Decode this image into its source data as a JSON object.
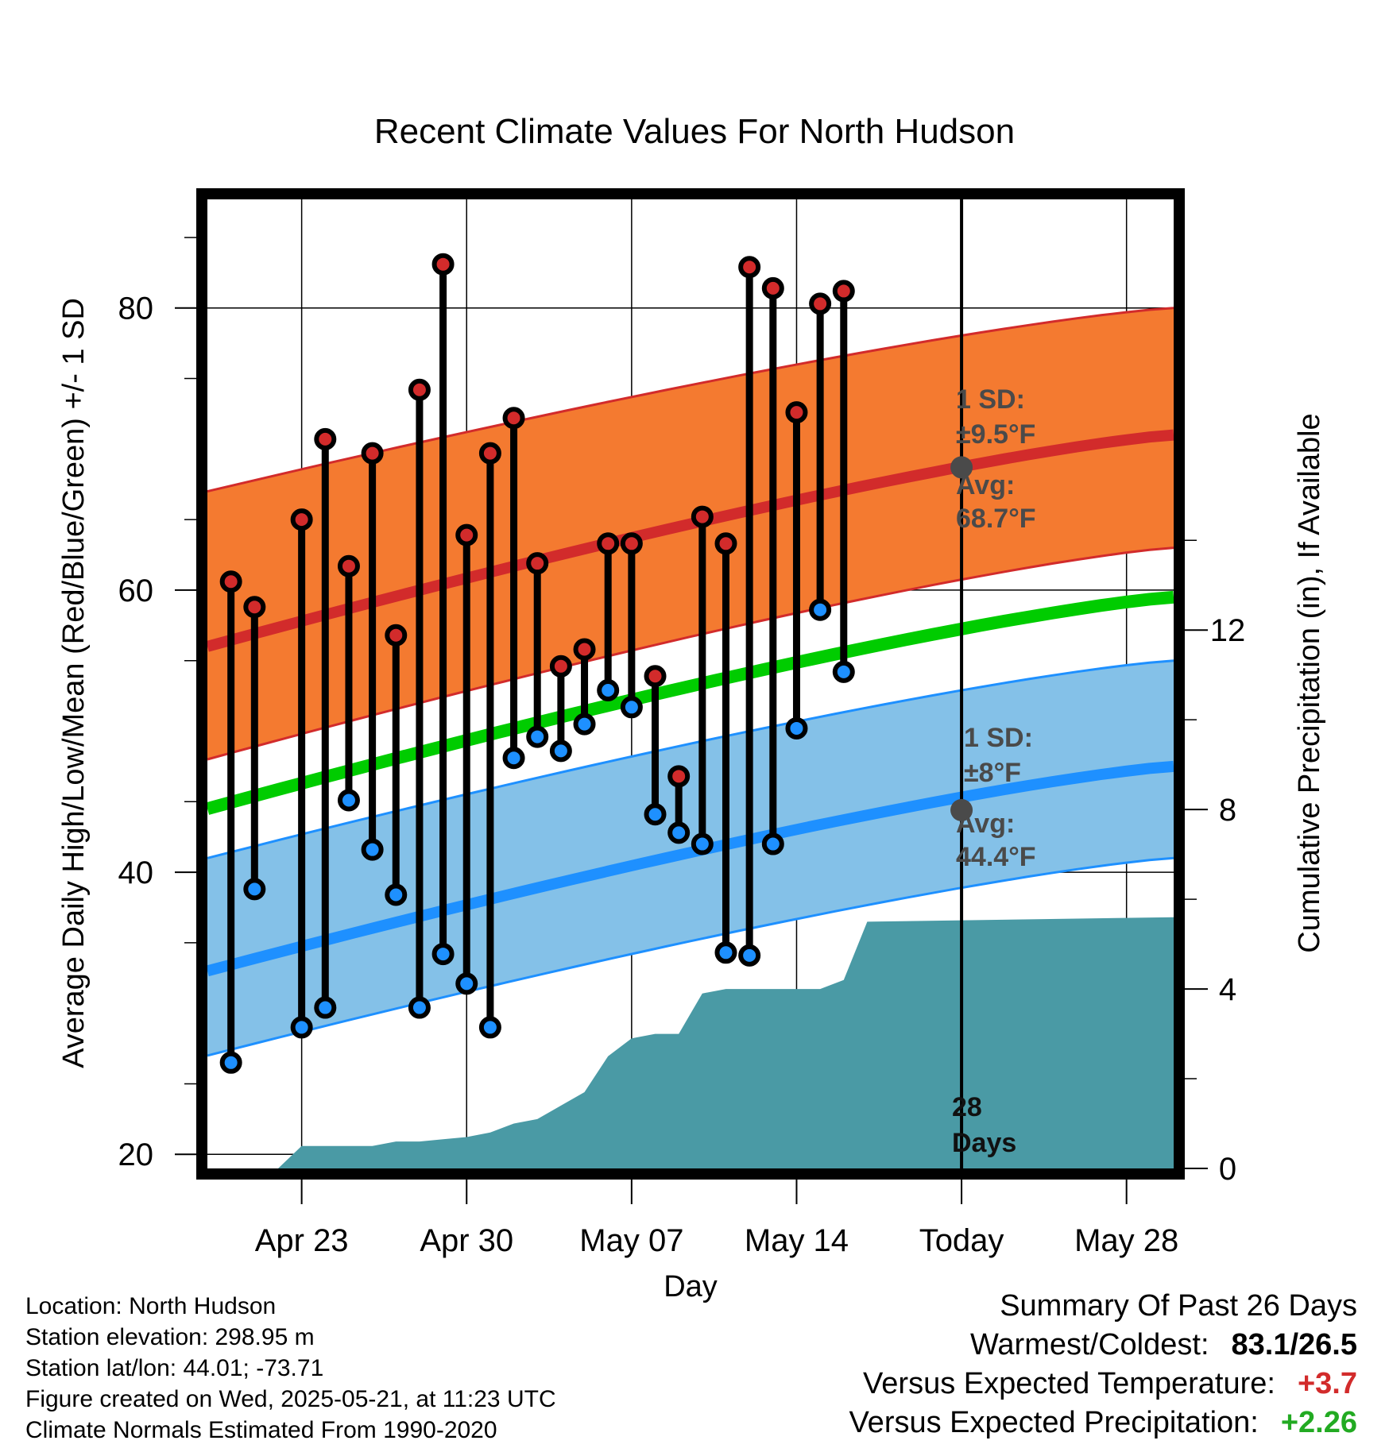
{
  "chart_data": {
    "type": "line",
    "title": "Recent Climate Values For North Hudson",
    "xlabel": "Day",
    "ylabel": "Average Daily High/Low/Mean (Red/Blue/Green) +/- 1 SD",
    "y2label": "Cumulative Precipitation (in), If Available",
    "ylim": [
      19,
      87.7
    ],
    "y2lim": [
      0,
      21.6
    ],
    "yticks": [
      20,
      40,
      60,
      80
    ],
    "y2ticks": [
      0,
      4,
      8,
      12
    ],
    "xrange_day_of_year": [
      109,
      150
    ],
    "xticks": [
      {
        "label": "Apr 23",
        "day": 113
      },
      {
        "label": "Apr 30",
        "day": 120
      },
      {
        "label": "May 07",
        "day": 127
      },
      {
        "label": "May 14",
        "day": 134
      },
      {
        "label": "Today",
        "day": 141
      },
      {
        "label": "May 28",
        "day": 148
      }
    ],
    "today_day": 141,
    "days_label": [
      "28",
      "Days"
    ],
    "normals": {
      "day": [
        109,
        150
      ],
      "high_mean": [
        56.0,
        71.0
      ],
      "high_upper": [
        67.0,
        80.0
      ],
      "high_lower": [
        48.0,
        63.0
      ],
      "mean": [
        44.5,
        59.5
      ],
      "low_mean": [
        33.0,
        47.5
      ],
      "low_upper": [
        41.0,
        55.0
      ],
      "low_lower": [
        27.0,
        41.0
      ]
    },
    "observed": {
      "day": [
        110,
        111,
        113,
        114,
        115,
        116,
        117,
        118,
        119,
        120,
        121,
        122,
        123,
        124,
        125,
        126,
        127,
        128,
        129,
        130,
        131,
        132,
        133,
        134,
        135,
        136
      ],
      "high": [
        60.6,
        58.8,
        65.0,
        70.7,
        61.7,
        69.7,
        56.8,
        74.2,
        83.1,
        63.9,
        69.7,
        72.2,
        61.9,
        54.6,
        55.8,
        63.3,
        63.3,
        53.9,
        46.8,
        65.2,
        63.3,
        82.9,
        81.4,
        72.6,
        80.3,
        81.2
      ],
      "low": [
        26.5,
        38.8,
        29.0,
        30.4,
        45.1,
        41.6,
        38.4,
        30.4,
        34.2,
        32.1,
        29.0,
        48.1,
        49.6,
        48.6,
        50.5,
        52.9,
        51.7,
        44.1,
        42.8,
        42.0,
        34.3,
        34.1,
        42.0,
        50.2,
        58.6,
        54.2
      ]
    },
    "precip_cumulative": {
      "day": [
        112,
        113,
        114,
        115,
        116,
        117,
        118,
        119,
        120,
        121,
        122,
        123,
        124,
        125,
        126,
        127,
        128,
        129,
        130,
        131,
        132,
        133,
        134,
        135,
        136,
        137,
        150
      ],
      "value": [
        0,
        0.5,
        0.5,
        0.5,
        0.5,
        0.6,
        0.6,
        0.65,
        0.7,
        0.8,
        1.0,
        1.1,
        1.4,
        1.7,
        2.5,
        2.9,
        3.0,
        3.0,
        3.9,
        4.0,
        4.0,
        4.0,
        4.0,
        4.0,
        4.2,
        5.5,
        5.6
      ]
    },
    "annotations": {
      "high": {
        "sd_label": "1 SD:",
        "sd_value": "±9.5",
        "avg_label": "Avg:",
        "avg_value": "68.7",
        "unit": "°F",
        "marker_value": 68.7
      },
      "low": {
        "sd_label": "1 SD:",
        "sd_value": "±8",
        "avg_label": "Avg:",
        "avg_value": "44.4",
        "unit": "°F",
        "marker_value": 44.4
      }
    },
    "colors": {
      "high_band": "#f47a30",
      "high_line": "#d22b2b",
      "low_band": "#84c1e8",
      "low_line": "#1e90ff",
      "mean_line": "#00cc00",
      "precip": "#4a9aa5",
      "high_dot": "#d22b2b",
      "low_dot": "#1e90ff"
    }
  },
  "metadata": {
    "location": "Location: North Hudson",
    "elevation": "Station elevation: 298.95 m",
    "latlon": "Station lat/lon: 44.01; -73.71",
    "created": "Figure created on Wed, 2025-05-21, at 11:23 UTC",
    "normals": "Climate Normals Estimated From 1990-2020"
  },
  "summary": {
    "title": "Summary Of Past 26 Days",
    "warm_cold_label": "Warmest/Coldest:",
    "warm_cold_value": "83.1/26.5",
    "temp_label": "Versus Expected Temperature:",
    "temp_value": "+3.7",
    "precip_label": "Versus Expected Precipitation:",
    "precip_value": "+2.26"
  }
}
